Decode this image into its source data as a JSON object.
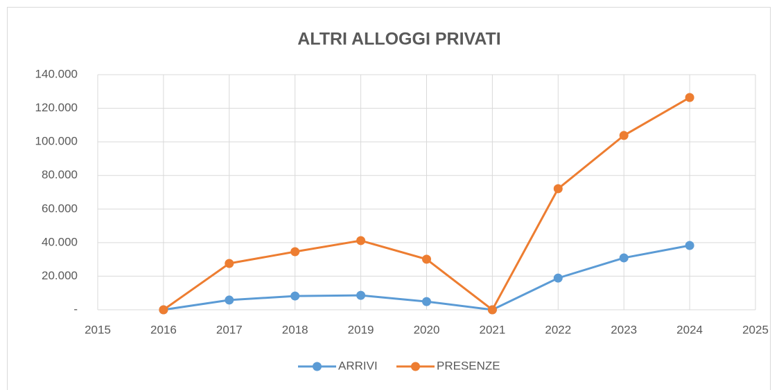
{
  "chart_data": {
    "type": "line",
    "title": "ALTRI ALLOGGI PRIVATI",
    "x": [
      2016,
      2017,
      2018,
      2019,
      2020,
      2021,
      2022,
      2023,
      2024
    ],
    "series": [
      {
        "name": "ARRIVI",
        "color": "#5b9bd5",
        "values": [
          0,
          5800,
          8200,
          8600,
          4900,
          0,
          18900,
          30900,
          38300
        ]
      },
      {
        "name": "PRESENZE",
        "color": "#ed7d31",
        "values": [
          0,
          27600,
          34600,
          41200,
          30100,
          0,
          72100,
          103800,
          126400
        ]
      }
    ],
    "xlim": [
      2015,
      2025
    ],
    "xticks": [
      2015,
      2016,
      2017,
      2018,
      2019,
      2020,
      2021,
      2022,
      2023,
      2024,
      2025
    ],
    "ylim": [
      0,
      140000
    ],
    "yticks": [
      {
        "value": 0,
        "label": "-"
      },
      {
        "value": 20000,
        "label": "20.000"
      },
      {
        "value": 40000,
        "label": "40.000"
      },
      {
        "value": 60000,
        "label": "60.000"
      },
      {
        "value": 80000,
        "label": "80.000"
      },
      {
        "value": 100000,
        "label": "100.000"
      },
      {
        "value": 120000,
        "label": "120.000"
      },
      {
        "value": 140000,
        "label": "140.000"
      }
    ],
    "grid": true,
    "legend": "bottom"
  }
}
